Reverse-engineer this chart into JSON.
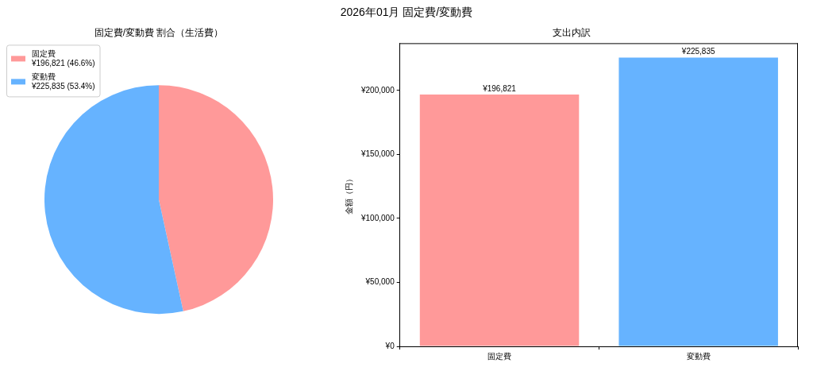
{
  "chart_data": [
    {
      "type": "other",
      "title": "2026年01月 固定費/変動費"
    },
    {
      "type": "pie",
      "title": "固定費/変動費 割合（生活費）",
      "categories": [
        "固定費",
        "変動費"
      ],
      "values": [
        196821,
        225835
      ],
      "value_labels": [
        "¥196,821 (46.6%)",
        "¥225,835 (53.4%)"
      ],
      "colors": [
        "#ff9999",
        "#66b3ff"
      ],
      "legend": "top left"
    },
    {
      "type": "bar",
      "title": "支出内訳",
      "ylabel": "金額（円）",
      "categories": [
        "固定費",
        "変動費"
      ],
      "values": [
        196821,
        225835
      ],
      "colors": [
        "#ff9999",
        "#66b3ff"
      ],
      "value_labels": [
        "¥196,821",
        "¥225,835"
      ],
      "ylim": [
        0,
        237000
      ],
      "yticks": [
        {
          "value": 0,
          "label": "¥0"
        },
        {
          "value": 50000,
          "label": "¥50,000"
        },
        {
          "value": 100000,
          "label": "¥100,000"
        },
        {
          "value": 150000,
          "label": "¥150,000"
        },
        {
          "value": 200000,
          "label": "¥200,000"
        }
      ]
    }
  ]
}
